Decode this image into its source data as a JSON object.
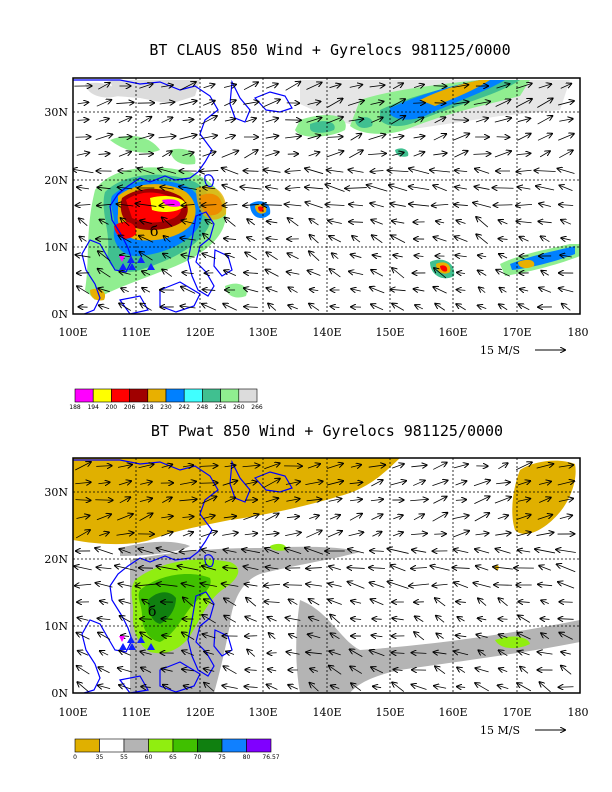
{
  "panels": [
    {
      "id": "claus",
      "title": "BT CLAUS 850 Wind + Gyrelocs 981125/0000",
      "lat_labels": [
        "0N",
        "10N",
        "20N",
        "30N"
      ],
      "lon_labels": [
        "100E",
        "110E",
        "120E",
        "130E",
        "140E",
        "150E",
        "160E",
        "170E",
        "180"
      ],
      "vector_scale_label": "15 M/S",
      "legend_label": "",
      "legend_colors": [
        "#ff00ff",
        "#ffff00",
        "#ff0000",
        "#a00000",
        "#e8b000",
        "#0080ff",
        "#40ffff",
        "#40c090",
        "#90ee90",
        "#dcdcdc"
      ],
      "legend_values": [
        "188",
        "194",
        "200",
        "206",
        "218",
        "230",
        "242",
        "248",
        "254",
        "260",
        "266"
      ]
    },
    {
      "id": "pwat",
      "title": "BT Pwat 850 Wind + Gyrelocs 981125/0000",
      "lat_labels": [
        "0N",
        "10N",
        "20N",
        "30N"
      ],
      "lon_labels": [
        "100E",
        "110E",
        "120E",
        "130E",
        "140E",
        "150E",
        "160E",
        "170E",
        "180"
      ],
      "vector_scale_label": "15 M/S",
      "legend_colors": [
        "#e0b000",
        "#ffffff",
        "#b4b4b4",
        "#90ee10",
        "#40c000",
        "#108010",
        "#1080ff",
        "#8000ff"
      ],
      "legend_values": [
        "0",
        "35",
        "55",
        "60",
        "65",
        "70",
        "75",
        "80",
        "76.57"
      ]
    }
  ],
  "map": {
    "lon_min": 100,
    "lon_max": 180,
    "lat_min": 0,
    "lat_max": 35
  },
  "colors": {
    "coast": "#0000ff",
    "grid": "#000000",
    "gyre_marker": "#ff00ff",
    "gyre_triangle": "#1020ff"
  }
}
